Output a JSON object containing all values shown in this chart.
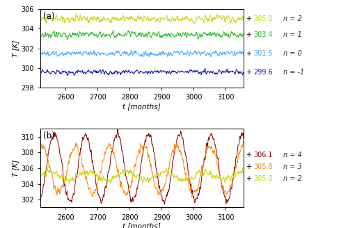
{
  "t_start": 2520,
  "t_end": 3156,
  "n_points": 700,
  "panel_a": {
    "series": [
      {
        "n": 2,
        "mean": 305.0,
        "noise": 0.35,
        "color": "#c8d400",
        "label": "305.0",
        "n_label": "n = 2"
      },
      {
        "n": 1,
        "mean": 303.4,
        "noise": 0.32,
        "color": "#22bb22",
        "label": "303.4",
        "n_label": "n = 1"
      },
      {
        "n": 0,
        "mean": 301.5,
        "noise": 0.28,
        "color": "#44aaff",
        "label": "301.5",
        "n_label": "n = 0"
      },
      {
        "n": -1,
        "mean": 299.6,
        "noise": 0.22,
        "color": "#1111bb",
        "label": "299.6",
        "n_label": "n = -1"
      }
    ],
    "ylim": [
      298,
      306
    ],
    "yticks": [
      298,
      300,
      302,
      304,
      306
    ],
    "ylabel": "T [K]",
    "xlabel": "t [months]",
    "panel_label": "(a)"
  },
  "panel_b": {
    "series": [
      {
        "n": 4,
        "mean": 306.1,
        "amp": 4.2,
        "noise": 0.4,
        "period": 98,
        "phase": 0.5,
        "color": "#8b0000",
        "label": "306.1",
        "n_label": "n = 4"
      },
      {
        "n": 3,
        "mean": 305.8,
        "amp": 3.0,
        "noise": 0.4,
        "period": 105,
        "phase": 1.2,
        "color": "#ff8800",
        "label": "305.8",
        "n_label": "n = 3"
      },
      {
        "n": 2,
        "mean": 305.0,
        "amp": 0.5,
        "noise": 0.35,
        "period": 120,
        "phase": 0.0,
        "color": "#c8d400",
        "label": "305.0",
        "n_label": "n = 2"
      }
    ],
    "ylim": [
      301,
      311
    ],
    "yticks": [
      302,
      304,
      306,
      308,
      310
    ],
    "ylabel": "T [K]",
    "xlabel": "t [months]",
    "panel_label": "(b)"
  },
  "xticks": [
    2600,
    2700,
    2800,
    2900,
    3000,
    3100
  ],
  "xlim": [
    2520,
    3156
  ],
  "label_color_n": "#333333"
}
